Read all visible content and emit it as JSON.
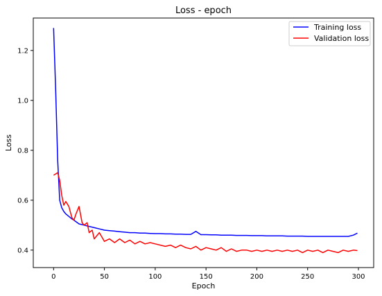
{
  "chart_data": {
    "type": "line",
    "title": "Loss - epoch",
    "xlabel": "Epoch",
    "ylabel": "Loss",
    "xlim": [
      -20,
      315
    ],
    "ylim": [
      0.33,
      1.33
    ],
    "xticks": [
      0,
      50,
      100,
      150,
      200,
      250,
      300
    ],
    "yticks": [
      0.4,
      0.6,
      0.8,
      1.0,
      1.2
    ],
    "ytick_labels": [
      "0.4",
      "0.6",
      "0.8",
      "1.0",
      "1.2"
    ],
    "grid": false,
    "legend_position": "top-right",
    "series": [
      {
        "name": "Training loss",
        "color": "#0000ff",
        "x": [
          0,
          2,
          4,
          6,
          8,
          10,
          12,
          15,
          18,
          20,
          25,
          30,
          35,
          40,
          45,
          50,
          55,
          60,
          65,
          70,
          75,
          80,
          85,
          90,
          95,
          100,
          105,
          110,
          115,
          120,
          125,
          130,
          135,
          140,
          145,
          150,
          155,
          160,
          165,
          170,
          175,
          180,
          185,
          190,
          195,
          200,
          205,
          210,
          215,
          220,
          225,
          230,
          235,
          240,
          245,
          250,
          255,
          260,
          265,
          270,
          275,
          280,
          285,
          290,
          295,
          299
        ],
        "y": [
          1.29,
          1.05,
          0.76,
          0.6,
          0.57,
          0.555,
          0.545,
          0.535,
          0.525,
          0.52,
          0.505,
          0.5,
          0.495,
          0.49,
          0.485,
          0.48,
          0.478,
          0.476,
          0.474,
          0.472,
          0.47,
          0.47,
          0.468,
          0.468,
          0.467,
          0.466,
          0.466,
          0.465,
          0.465,
          0.464,
          0.464,
          0.463,
          0.463,
          0.475,
          0.462,
          0.462,
          0.461,
          0.461,
          0.46,
          0.46,
          0.46,
          0.459,
          0.459,
          0.459,
          0.458,
          0.458,
          0.458,
          0.457,
          0.457,
          0.457,
          0.457,
          0.456,
          0.456,
          0.456,
          0.456,
          0.455,
          0.455,
          0.455,
          0.455,
          0.455,
          0.455,
          0.455,
          0.455,
          0.455,
          0.46,
          0.468
        ]
      },
      {
        "name": "Validation loss",
        "color": "#ff0000",
        "x": [
          0,
          2,
          4,
          6,
          8,
          10,
          12,
          15,
          18,
          20,
          22,
          25,
          28,
          30,
          33,
          35,
          38,
          40,
          45,
          50,
          55,
          60,
          65,
          70,
          75,
          80,
          85,
          90,
          95,
          100,
          105,
          110,
          115,
          120,
          125,
          130,
          135,
          140,
          145,
          150,
          155,
          160,
          165,
          170,
          175,
          180,
          185,
          190,
          195,
          200,
          205,
          210,
          215,
          220,
          225,
          230,
          235,
          240,
          245,
          250,
          255,
          260,
          265,
          270,
          275,
          280,
          285,
          290,
          295,
          299
        ],
        "y": [
          0.7,
          0.705,
          0.71,
          0.68,
          0.62,
          0.58,
          0.595,
          0.575,
          0.53,
          0.52,
          0.545,
          0.575,
          0.51,
          0.5,
          0.51,
          0.47,
          0.48,
          0.445,
          0.47,
          0.435,
          0.445,
          0.43,
          0.445,
          0.43,
          0.44,
          0.425,
          0.435,
          0.425,
          0.43,
          0.425,
          0.42,
          0.415,
          0.42,
          0.41,
          0.42,
          0.41,
          0.405,
          0.415,
          0.4,
          0.41,
          0.405,
          0.4,
          0.41,
          0.395,
          0.405,
          0.395,
          0.4,
          0.4,
          0.395,
          0.4,
          0.395,
          0.4,
          0.395,
          0.4,
          0.395,
          0.4,
          0.395,
          0.4,
          0.39,
          0.4,
          0.395,
          0.4,
          0.39,
          0.4,
          0.395,
          0.39,
          0.4,
          0.395,
          0.4,
          0.398
        ]
      }
    ]
  }
}
